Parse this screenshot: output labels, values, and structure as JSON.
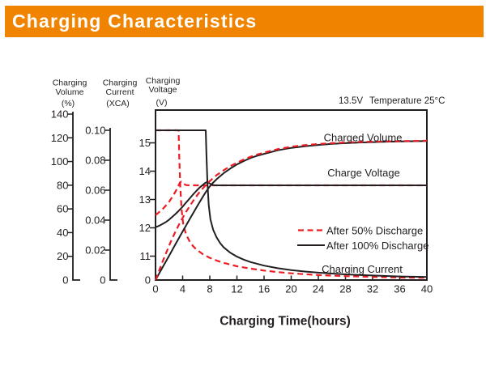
{
  "header": {
    "title": "Charging Characteristics"
  },
  "colors": {
    "accent_orange": "#F08300",
    "series_dashed_red": "#ED1C24",
    "series_solid_black": "#231F20"
  },
  "chart_data": {
    "type": "line",
    "title": "Charging Characteristics",
    "xlabel": "Charging Time(hours)",
    "x_range": [
      0,
      40
    ],
    "x_ticks": [
      "0",
      "4",
      "8",
      "12",
      "16",
      "20",
      "24",
      "28",
      "32",
      "36",
      "40"
    ],
    "grid": "off",
    "legend_position": "inside-right",
    "annotations": {
      "set_voltage": "13.5V",
      "temperature": "Temperature 25°C"
    },
    "axes": {
      "volume": {
        "title_lines": [
          "Charging",
          "Volume"
        ],
        "unit": "(%)",
        "ticks": [
          "0",
          "20",
          "40",
          "60",
          "80",
          "100",
          "120",
          "140"
        ],
        "range": [
          0,
          140
        ]
      },
      "current": {
        "title_lines": [
          "Charging",
          "Current"
        ],
        "unit": "(XCA)",
        "ticks": [
          "0",
          "0.02",
          "0.04",
          "0.06",
          "0.08",
          "0.10"
        ],
        "range": [
          0,
          0.1
        ]
      },
      "voltage": {
        "title_lines": [
          "Charging",
          "Voltage"
        ],
        "unit": "(V)",
        "ticks": [
          "11",
          "12",
          "13",
          "14",
          "15"
        ],
        "zero_label": "0",
        "range": [
          11,
          15
        ]
      }
    },
    "curve_labels": {
      "volume": "Charged Volume",
      "voltage": "Charge Voltage",
      "current": "Charging Current"
    },
    "legend": [
      {
        "label": "After 50% Discharge",
        "style": "dashed",
        "color": "#ED1C24"
      },
      {
        "label": "After 100% Discharge",
        "style": "solid",
        "color": "#231F20"
      }
    ],
    "series": [
      {
        "name": "charge-voltage-50",
        "axis": "voltage",
        "style": "dashed",
        "points": [
          [
            0,
            12.45
          ],
          [
            0.5,
            12.55
          ],
          [
            1,
            12.65
          ],
          [
            1.5,
            12.78
          ],
          [
            2,
            12.92
          ],
          [
            2.5,
            13.1
          ],
          [
            3,
            13.3
          ],
          [
            3.3,
            13.45
          ],
          [
            3.6,
            13.6
          ],
          [
            3.8,
            13.63
          ],
          [
            4.1,
            13.56
          ],
          [
            4.5,
            13.51
          ],
          [
            5,
            13.5
          ],
          [
            40,
            13.5
          ]
        ]
      },
      {
        "name": "charge-voltage-100",
        "axis": "voltage",
        "style": "solid",
        "points": [
          [
            0,
            12.02
          ],
          [
            0.5,
            12.07
          ],
          [
            1,
            12.13
          ],
          [
            1.5,
            12.2
          ],
          [
            2,
            12.29
          ],
          [
            2.5,
            12.39
          ],
          [
            3,
            12.5
          ],
          [
            3.5,
            12.62
          ],
          [
            4,
            12.75
          ],
          [
            4.5,
            12.89
          ],
          [
            5,
            13.03
          ],
          [
            5.5,
            13.17
          ],
          [
            6,
            13.3
          ],
          [
            6.5,
            13.42
          ],
          [
            7,
            13.52
          ],
          [
            7.3,
            13.58
          ],
          [
            7.6,
            13.62
          ],
          [
            7.9,
            13.58
          ],
          [
            8.3,
            13.52
          ],
          [
            8.8,
            13.5
          ],
          [
            40,
            13.5
          ]
        ]
      },
      {
        "name": "charging-current-50",
        "axis": "current",
        "style": "dashed",
        "points": [
          [
            0,
            0.1
          ],
          [
            3.4,
            0.1
          ],
          [
            3.5,
            0.082
          ],
          [
            3.65,
            0.062
          ],
          [
            3.85,
            0.047
          ],
          [
            4.1,
            0.037
          ],
          [
            4.5,
            0.0305
          ],
          [
            5,
            0.026
          ],
          [
            5.5,
            0.0228
          ],
          [
            6,
            0.0205
          ],
          [
            7,
            0.0172
          ],
          [
            8,
            0.0148
          ],
          [
            9,
            0.013
          ],
          [
            10,
            0.0115
          ],
          [
            12,
            0.0092
          ],
          [
            14,
            0.0076
          ],
          [
            16,
            0.0063
          ],
          [
            18,
            0.0053
          ],
          [
            20,
            0.0045
          ],
          [
            24,
            0.0033
          ],
          [
            28,
            0.0026
          ],
          [
            32,
            0.0021
          ],
          [
            36,
            0.0017
          ],
          [
            40,
            0.0015
          ]
        ]
      },
      {
        "name": "charging-current-100",
        "axis": "current",
        "style": "solid",
        "points": [
          [
            0,
            0.1
          ],
          [
            7.4,
            0.1
          ],
          [
            7.5,
            0.085
          ],
          [
            7.65,
            0.065
          ],
          [
            7.85,
            0.05
          ],
          [
            8.1,
            0.0405
          ],
          [
            8.5,
            0.0335
          ],
          [
            9,
            0.0285
          ],
          [
            9.5,
            0.0248
          ],
          [
            10,
            0.022
          ],
          [
            11,
            0.0183
          ],
          [
            12,
            0.0156
          ],
          [
            13,
            0.0136
          ],
          [
            14,
            0.012
          ],
          [
            16,
            0.0096
          ],
          [
            18,
            0.0079
          ],
          [
            20,
            0.0066
          ],
          [
            22,
            0.0057
          ],
          [
            24,
            0.0049
          ],
          [
            26,
            0.0043
          ],
          [
            28,
            0.0038
          ],
          [
            30,
            0.0034
          ],
          [
            32,
            0.003
          ],
          [
            34,
            0.0027
          ],
          [
            36,
            0.0024
          ],
          [
            38,
            0.0022
          ],
          [
            40,
            0.002
          ]
        ]
      },
      {
        "name": "charged-volume-100",
        "axis": "volume",
        "style": "solid",
        "points": [
          [
            0,
            0
          ],
          [
            1,
            10.3
          ],
          [
            2,
            20.5
          ],
          [
            3,
            30.8
          ],
          [
            4,
            41
          ],
          [
            5,
            51
          ],
          [
            6,
            61
          ],
          [
            7,
            70.5
          ],
          [
            7.5,
            75
          ],
          [
            8,
            79
          ],
          [
            8.5,
            82.2
          ],
          [
            9,
            85
          ],
          [
            10,
            90
          ],
          [
            11,
            94
          ],
          [
            12,
            97.5
          ],
          [
            13,
            100.4
          ],
          [
            14,
            103
          ],
          [
            15,
            104.9
          ],
          [
            16,
            106.5
          ],
          [
            18,
            109.5
          ],
          [
            20,
            111.5
          ],
          [
            22,
            112.9
          ],
          [
            24,
            114
          ],
          [
            26,
            114.9
          ],
          [
            28,
            115.5
          ],
          [
            30,
            116
          ],
          [
            32,
            116.4
          ],
          [
            34,
            116.7
          ],
          [
            36,
            117
          ],
          [
            38,
            117.15
          ],
          [
            40,
            117.3
          ]
        ]
      },
      {
        "name": "charged-volume-50",
        "axis": "volume",
        "style": "dashed",
        "points": [
          [
            0,
            0
          ],
          [
            0.5,
            7.5
          ],
          [
            1,
            15
          ],
          [
            1.5,
            22
          ],
          [
            2,
            29
          ],
          [
            2.5,
            35.5
          ],
          [
            3,
            41.5
          ],
          [
            3.5,
            47.2
          ],
          [
            4,
            52.5
          ],
          [
            4.5,
            57.5
          ],
          [
            5,
            62
          ],
          [
            5.5,
            66.4
          ],
          [
            6,
            70.5
          ],
          [
            6.5,
            74.2
          ],
          [
            7,
            77.5
          ],
          [
            7.5,
            80.6
          ],
          [
            8,
            83.5
          ],
          [
            9,
            88.5
          ],
          [
            10,
            92.5
          ],
          [
            11,
            96
          ],
          [
            12,
            99
          ],
          [
            13,
            101.7
          ],
          [
            14,
            104
          ],
          [
            15,
            105.9
          ],
          [
            16,
            107.5
          ],
          [
            18,
            110.4
          ],
          [
            20,
            112.5
          ],
          [
            22,
            113.8
          ],
          [
            24,
            114.8
          ],
          [
            26,
            115.5
          ],
          [
            28,
            116
          ],
          [
            30,
            116.5
          ],
          [
            32,
            116.8
          ],
          [
            34,
            117
          ],
          [
            36,
            117.2
          ],
          [
            38,
            117.35
          ],
          [
            40,
            117.5
          ]
        ]
      }
    ]
  }
}
